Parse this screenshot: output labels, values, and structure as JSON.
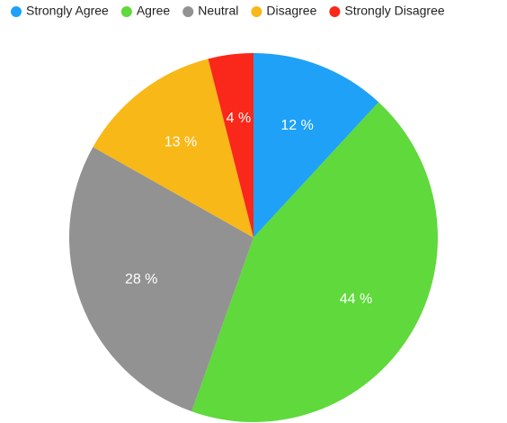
{
  "chart_data": {
    "type": "pie",
    "categories": [
      "Strongly Agree",
      "Agree",
      "Neutral",
      "Disagree",
      "Strongly Disagree"
    ],
    "values": [
      12,
      44,
      28,
      13,
      4
    ],
    "value_labels": [
      "12 %",
      "44 %",
      "28 %",
      "13 %",
      "4 %"
    ],
    "colors": [
      "#1ea1f7",
      "#5fd93b",
      "#929292",
      "#f8b818",
      "#f9281a"
    ],
    "legend": "top"
  }
}
